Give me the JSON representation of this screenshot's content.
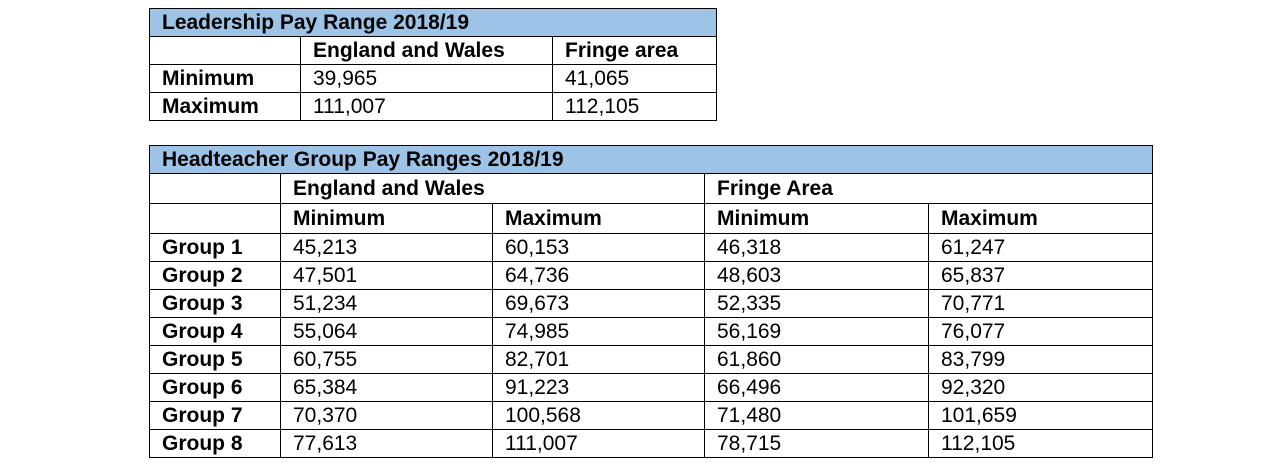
{
  "leadership": {
    "title": "Leadership Pay Range 2018/19",
    "col1": "England and Wales",
    "col2": "Fringe area",
    "rows": [
      {
        "label": "Minimum",
        "ew": "39,965",
        "fringe": "41,065"
      },
      {
        "label": "Maximum",
        "ew": "111,007",
        "fringe": "112,105"
      }
    ]
  },
  "headteacher": {
    "title": "Headteacher Group Pay Ranges 2018/19",
    "ew_label": "England and Wales",
    "fringe_label": "Fringe Area",
    "min_label": "Minimum",
    "max_label": "Maximum",
    "rows": [
      {
        "group": "Group 1",
        "ew_min": "45,213",
        "ew_max": "60,153",
        "fr_min": "46,318",
        "fr_max": "61,247"
      },
      {
        "group": "Group 2",
        "ew_min": "47,501",
        "ew_max": "64,736",
        "fr_min": "48,603",
        "fr_max": "65,837"
      },
      {
        "group": "Group 3",
        "ew_min": "51,234",
        "ew_max": "69,673",
        "fr_min": "52,335",
        "fr_max": "70,771"
      },
      {
        "group": "Group 4",
        "ew_min": "55,064",
        "ew_max": "74,985",
        "fr_min": "56,169",
        "fr_max": "76,077"
      },
      {
        "group": "Group 5",
        "ew_min": "60,755",
        "ew_max": "82,701",
        "fr_min": "61,860",
        "fr_max": "83,799"
      },
      {
        "group": "Group 6",
        "ew_min": "65,384",
        "ew_max": "91,223",
        "fr_min": "66,496",
        "fr_max": "92,320"
      },
      {
        "group": "Group 7",
        "ew_min": "70,370",
        "ew_max": "100,568",
        "fr_min": "71,480",
        "fr_max": "101,659"
      },
      {
        "group": "Group 8",
        "ew_min": "77,613",
        "ew_max": "111,007",
        "fr_min": "78,715",
        "fr_max": "112,105"
      }
    ]
  }
}
